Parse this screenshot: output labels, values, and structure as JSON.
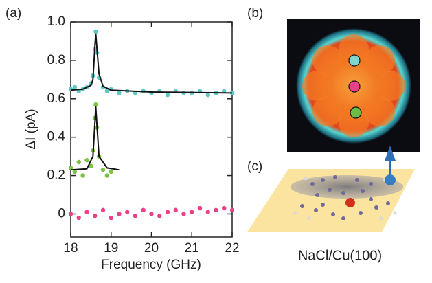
{
  "chart_data": {
    "type": "scatter",
    "xlabel": "Frequency (GHz)",
    "ylabel": "ΔI (pA)",
    "xlim": [
      18,
      22
    ],
    "ylim": [
      -0.12,
      1.0
    ],
    "xticks": [
      18,
      19,
      20,
      21,
      22
    ],
    "yticks": [
      0,
      0.2,
      0.4,
      0.6,
      0.8,
      {
        "value": 1,
        "label": "1.0"
      }
    ],
    "series": [
      {
        "color": "#5ec8c8",
        "x": [
          18.0,
          18.1,
          18.2,
          18.3,
          18.4,
          18.5,
          18.55,
          18.6,
          18.62,
          18.65,
          18.7,
          18.8,
          18.9,
          19.0,
          19.2,
          19.4,
          19.6,
          19.8,
          20.0,
          20.2,
          20.4,
          20.6,
          20.8,
          21.0,
          21.2,
          21.4,
          21.6,
          21.8,
          22.0
        ],
        "values": [
          0.65,
          0.66,
          0.64,
          0.65,
          0.66,
          0.68,
          0.72,
          0.86,
          0.95,
          0.84,
          0.71,
          0.66,
          0.64,
          0.65,
          0.63,
          0.64,
          0.63,
          0.64,
          0.63,
          0.64,
          0.62,
          0.64,
          0.63,
          0.63,
          0.64,
          0.62,
          0.63,
          0.64,
          0.63
        ]
      },
      {
        "color": "#7cc242",
        "x": [
          18.0,
          18.1,
          18.2,
          18.3,
          18.4,
          18.5,
          18.55,
          18.6,
          18.62,
          18.65,
          18.7,
          18.8,
          18.9,
          19.0
        ],
        "values": [
          0.24,
          0.22,
          0.27,
          0.2,
          0.28,
          0.25,
          0.33,
          0.5,
          0.57,
          0.45,
          0.3,
          0.23,
          0.2,
          0.22
        ]
      },
      {
        "color": "#e8418a",
        "x": [
          18.0,
          18.2,
          18.4,
          18.6,
          18.8,
          19.0,
          19.2,
          19.4,
          19.6,
          19.8,
          20.0,
          20.2,
          20.4,
          20.6,
          20.8,
          21.0,
          21.2,
          21.4,
          21.6,
          21.8,
          22.0
        ],
        "values": [
          0.0,
          -0.02,
          0.01,
          -0.01,
          0.02,
          -0.02,
          0.0,
          0.01,
          -0.01,
          0.02,
          0.0,
          -0.01,
          0.01,
          0.02,
          0.0,
          0.01,
          0.03,
          0.01,
          0.02,
          0.03,
          0.02
        ]
      }
    ],
    "fits": [
      {
        "color": "#111111",
        "x": [
          18.0,
          18.3,
          18.5,
          18.55,
          18.6,
          18.62,
          18.65,
          18.7,
          18.8,
          19.0,
          20.0,
          22.0
        ],
        "values": [
          0.645,
          0.65,
          0.67,
          0.7,
          0.88,
          0.94,
          0.86,
          0.73,
          0.665,
          0.645,
          0.635,
          0.63
        ]
      },
      {
        "color": "#111111",
        "x": [
          18.0,
          18.4,
          18.55,
          18.6,
          18.62,
          18.65,
          18.7,
          18.9,
          19.2
        ],
        "values": [
          0.23,
          0.235,
          0.3,
          0.48,
          0.56,
          0.46,
          0.3,
          0.24,
          0.23
        ]
      }
    ]
  },
  "panel_labels": [
    "(a)",
    "(b)",
    "(c)"
  ],
  "substrate_label": "NaCl/Cu(100)"
}
